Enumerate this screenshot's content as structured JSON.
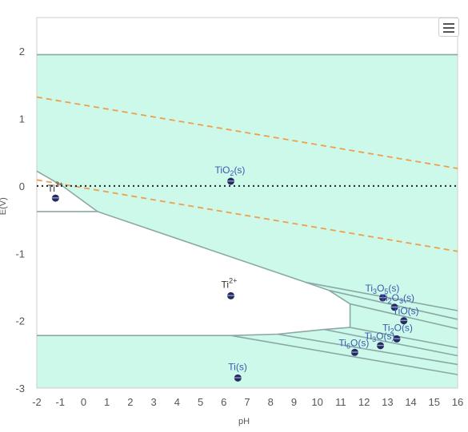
{
  "chart_data": {
    "type": "area",
    "xlabel": "pH",
    "ylabel": "E(V)",
    "xlim": [
      -2,
      16
    ],
    "ylim": [
      -3,
      2.5
    ],
    "x_ticks": [
      "-2",
      "-1",
      "0",
      "1",
      "2",
      "3",
      "4",
      "5",
      "6",
      "7",
      "8",
      "9",
      "10",
      "11",
      "12",
      "13",
      "14",
      "15",
      "16"
    ],
    "y_ticks": [
      "2",
      "1",
      "0",
      "-1",
      "-2",
      "-3"
    ],
    "region_color": "#ccf9ea",
    "boundary_color": "#8aa8a6",
    "water_line_color": "#f39c4a",
    "zero_line_color": "#222222",
    "marker_color": "#252b5e",
    "region_top": [
      [
        -2,
        1.95
      ],
      [
        16,
        1.95
      ]
    ],
    "region_left_boundary": [
      [
        -2,
        0.22
      ],
      [
        -0.9,
        0.0
      ],
      [
        0.6,
        -0.38
      ],
      [
        9.5,
        -1.43
      ],
      [
        10.5,
        -1.55
      ],
      [
        11.4,
        -1.75
      ],
      [
        11.4,
        -2.1
      ],
      [
        10.3,
        -2.13
      ],
      [
        8.3,
        -2.2
      ],
      [
        6.3,
        -2.22
      ],
      [
        -2,
        -2.22
      ]
    ],
    "boundaries": [
      [
        [
          -2,
          -0.38
        ],
        [
          0.6,
          -0.38
        ]
      ],
      [
        [
          9.5,
          -1.43
        ],
        [
          16,
          -1.85
        ]
      ],
      [
        [
          10.5,
          -1.55
        ],
        [
          16,
          -1.98
        ]
      ],
      [
        [
          11.4,
          -1.75
        ],
        [
          16,
          -2.12
        ]
      ],
      [
        [
          11.4,
          -2.1
        ],
        [
          16,
          -2.4
        ]
      ],
      [
        [
          10.3,
          -2.13
        ],
        [
          16,
          -2.52
        ]
      ],
      [
        [
          8.3,
          -2.2
        ],
        [
          16,
          -2.65
        ]
      ],
      [
        [
          6.3,
          -2.22
        ],
        [
          16,
          -2.8
        ]
      ]
    ],
    "water_lines": [
      {
        "x": [
          -2,
          16
        ],
        "y": [
          1.32,
          0.26
        ]
      },
      {
        "x": [
          -2,
          16
        ],
        "y": [
          0.09,
          -0.97
        ]
      }
    ],
    "zero_line": 0,
    "species": [
      {
        "base": "Ti",
        "sub": "",
        "sup": "3+",
        "x": -1.2,
        "y": -0.18,
        "label_color": "#333333",
        "label_dx": -10,
        "label_dy": -8
      },
      {
        "base": "TiO",
        "sub": "2",
        "sup": "",
        "tail": "(s)",
        "x": 6.3,
        "y": 0.07,
        "label_color": "#3b58b0",
        "label_dx": -20,
        "label_dy": -10
      },
      {
        "base": "Ti",
        "sub": "",
        "sup": "2+",
        "x": 6.3,
        "y": -1.63,
        "label_color": "#333333",
        "label_dx": -12,
        "label_dy": -10
      },
      {
        "base": "Ti",
        "sub": "3",
        "mid": "O",
        "sub2": "5",
        "tail": "(s)",
        "x": 12.8,
        "y": -1.66,
        "label_color": "#3b58b0",
        "label_dx": -22,
        "label_dy": -8
      },
      {
        "base": "Ti",
        "sub": "2",
        "mid": "O",
        "sub2": "3",
        "tail": "(s)",
        "x": 13.3,
        "y": -1.8,
        "label_color": "#3b58b0",
        "label_dx": -18,
        "label_dy": -8,
        "label_text_override": "Ti2O3(s)"
      },
      {
        "base": "TiO",
        "sub": "",
        "tail": "(s)",
        "x": 13.7,
        "y": -2.0,
        "label_color": "#3b58b0",
        "label_dx": -14,
        "label_dy": -8
      },
      {
        "base": "Ti",
        "sub": "2",
        "mid": "O",
        "sub2": "",
        "tail": "(s)",
        "x": 13.4,
        "y": -2.27,
        "label_color": "#3b58b0",
        "label_dx": -18,
        "label_dy": -10
      },
      {
        "base": "Ti",
        "sub": "3",
        "mid": "O",
        "sub2": "",
        "tail": "(s)",
        "x": 12.7,
        "y": -2.37,
        "label_color": "#3b58b0",
        "label_dx": -20,
        "label_dy": -8
      },
      {
        "base": "Ti",
        "sub": "6",
        "mid": "O",
        "sub2": "",
        "tail": "(s)",
        "x": 11.6,
        "y": -2.47,
        "label_color": "#3b58b0",
        "label_dx": -20,
        "label_dy": -8
      },
      {
        "base": "Ti",
        "sub": "",
        "tail": "(s)",
        "x": 6.6,
        "y": -2.85,
        "label_color": "#3b58b0",
        "label_dx": -12,
        "label_dy": -10
      }
    ]
  },
  "toolbar": {
    "menu_icon": "hamburger-icon"
  }
}
